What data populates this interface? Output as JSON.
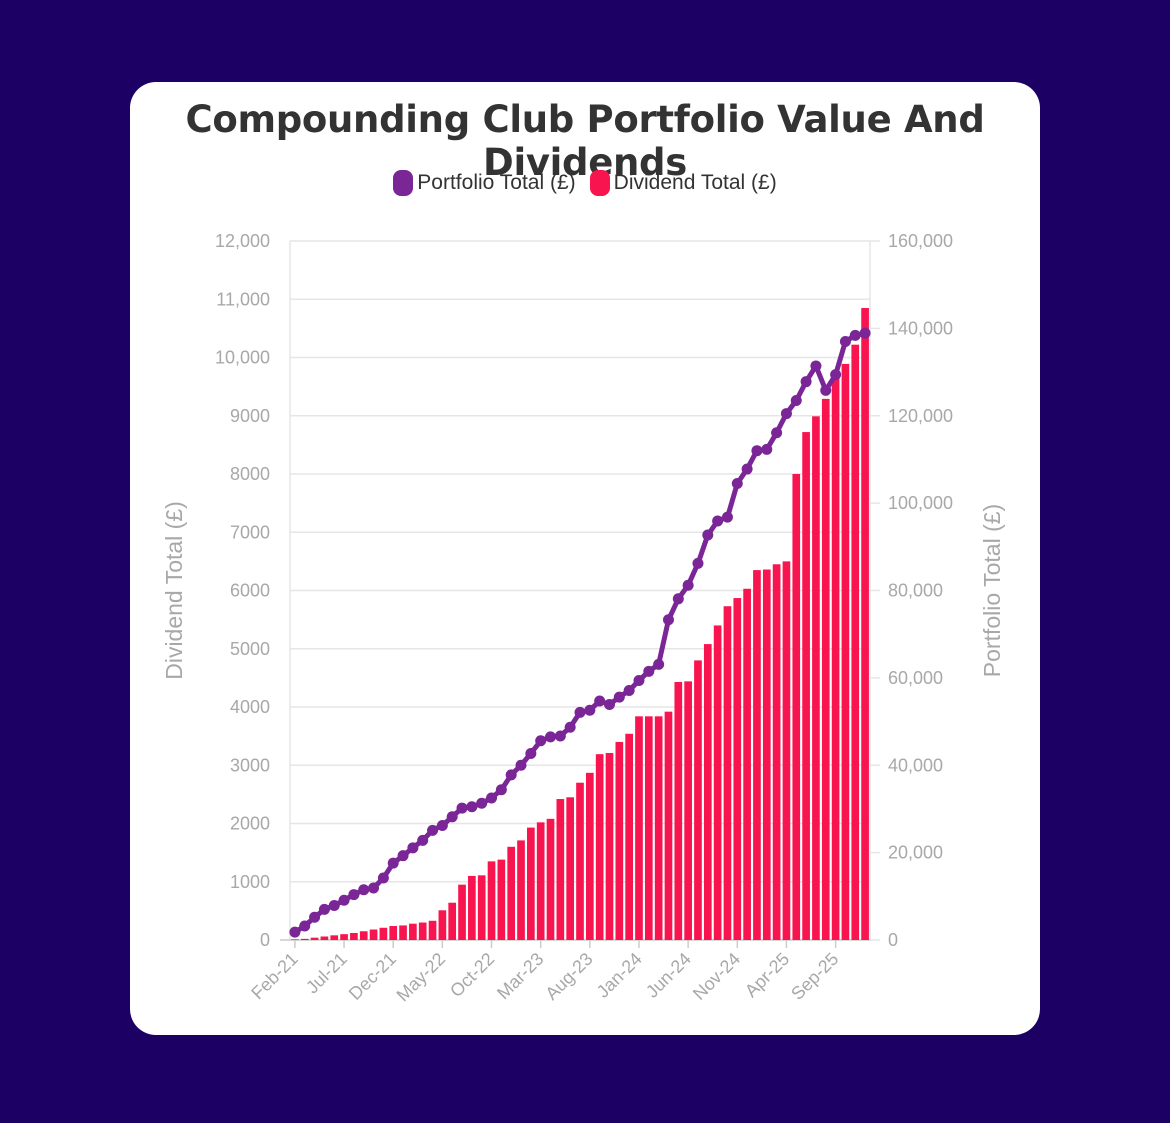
{
  "colors": {
    "background": "#1c0064",
    "card": "#ffffff",
    "portfolio": "#7b2696",
    "dividend": "#f8144f",
    "grid": "#e6e6e6",
    "tick_text": "#a8a8a8",
    "title_text": "#333333"
  },
  "chart_data": {
    "type": "bar",
    "title": "Compounding Club Portfolio Value And Dividends",
    "legend_position": "top-center",
    "grid": true,
    "x_tick_labels": [
      "Feb-21",
      "Jul-21",
      "Dec-21",
      "May-22",
      "Oct-22",
      "Mar-23",
      "Aug-23",
      "Jan-24",
      "Jun-24",
      "Nov-24",
      "Apr-25",
      "Sep-25"
    ],
    "x": [
      "Feb-21",
      "Mar-21",
      "Apr-21",
      "May-21",
      "Jun-21",
      "Jul-21",
      "Aug-21",
      "Sep-21",
      "Oct-21",
      "Nov-21",
      "Dec-21",
      "Jan-22",
      "Feb-22",
      "Mar-22",
      "Apr-22",
      "May-22",
      "Jun-22",
      "Jul-22",
      "Aug-22",
      "Sep-22",
      "Oct-22",
      "Nov-22",
      "Dec-22",
      "Jan-23",
      "Feb-23",
      "Mar-23",
      "Apr-23",
      "May-23",
      "Jun-23",
      "Jul-23",
      "Aug-23",
      "Sep-23",
      "Oct-23",
      "Nov-23",
      "Dec-23",
      "Jan-24",
      "Feb-24",
      "Mar-24",
      "Apr-24",
      "May-24",
      "Jun-24",
      "Jul-24",
      "Aug-24",
      "Sep-24",
      "Oct-24",
      "Nov-24",
      "Dec-24",
      "Jan-25",
      "Feb-25",
      "Mar-25",
      "Apr-25",
      "May-25",
      "Jun-25",
      "Jul-25",
      "Aug-25",
      "Sep-25",
      "Oct-25",
      "Nov-25",
      "Dec-25"
    ],
    "y_left": {
      "label": "Dividend Total (£)",
      "ylim": [
        0,
        12000
      ],
      "ticks": [
        "0",
        "1000",
        "2000",
        "3000",
        "4000",
        "5000",
        "6000",
        "7000",
        "8000",
        "9000",
        "10,000",
        "11,000",
        "12,000"
      ]
    },
    "y_right": {
      "label": "Portfolio Total (£)",
      "ylim": [
        0,
        160000
      ],
      "ticks": [
        "0",
        "20,000",
        "40,000",
        "60,000",
        "80,000",
        "100,000",
        "120,000",
        "140,000",
        "160,000"
      ]
    },
    "series": [
      {
        "name": "Portfolio Total (£)",
        "type": "line",
        "axis": "right",
        "values": [
          1800,
          3200,
          5200,
          7000,
          7900,
          9100,
          10400,
          11500,
          11900,
          14200,
          17600,
          19300,
          21100,
          22800,
          25100,
          26200,
          28200,
          30200,
          30500,
          31300,
          32500,
          34400,
          37800,
          40000,
          42700,
          45600,
          46500,
          46700,
          48700,
          52100,
          52600,
          54700,
          53900,
          55600,
          57100,
          59400,
          61500,
          63100,
          73300,
          78100,
          81200,
          86200,
          92700,
          95900,
          96800,
          104500,
          107800,
          112000,
          112300,
          116100,
          120500,
          123500,
          127800,
          131400,
          125800,
          129400,
          137000,
          138400,
          138900
        ]
      },
      {
        "name": "Dividend Total (£)",
        "type": "bar",
        "axis": "left",
        "values": [
          10,
          20,
          40,
          60,
          80,
          100,
          120,
          150,
          180,
          210,
          240,
          250,
          280,
          300,
          330,
          510,
          640,
          950,
          1100,
          1110,
          1350,
          1380,
          1600,
          1710,
          1930,
          2020,
          2080,
          2420,
          2450,
          2700,
          2870,
          3190,
          3210,
          3400,
          3540,
          3840,
          3840,
          3840,
          3920,
          4430,
          4440,
          4800,
          5080,
          5400,
          5730,
          5870,
          6030,
          6350,
          6360,
          6450,
          6500,
          8000,
          8720,
          8990,
          9290,
          9700,
          9890,
          10220,
          10850
        ]
      }
    ]
  }
}
